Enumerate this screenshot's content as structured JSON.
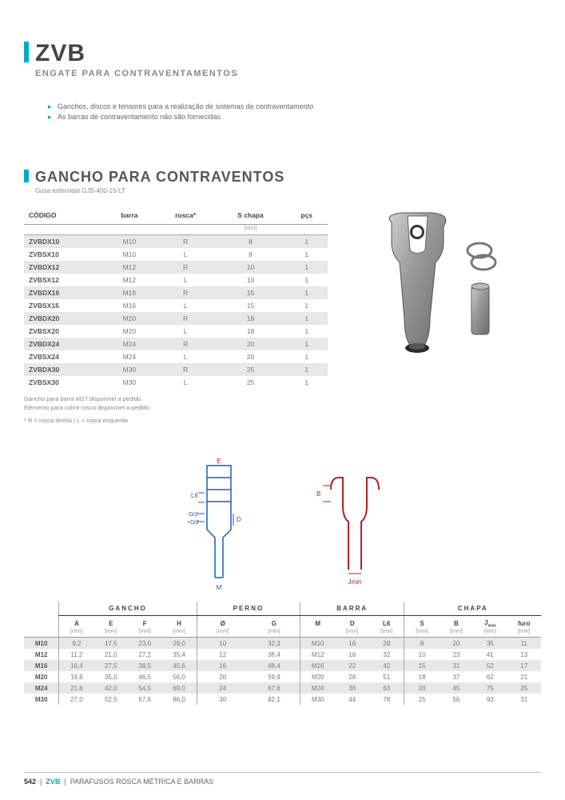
{
  "header": {
    "title": "ZVB",
    "subtitle": "ENGATE PARA CONTRAVENTAMENTOS"
  },
  "bullets": [
    "Ganchos, discos e tensores para a realização de sistemas de contraventamento",
    "As barras de contraventamento não são fornecidas"
  ],
  "section1": {
    "title": "GANCHO PARA CONTRAVENTOS",
    "material": "Gusa esferoidal GJS-400-15-LT",
    "columns": [
      "CÓDIGO",
      "barra",
      "rosca*",
      "S chapa",
      "pçs"
    ],
    "unit_s": "[mm]",
    "rows": [
      [
        "ZVBDX10",
        "M10",
        "R",
        "8",
        "1"
      ],
      [
        "ZVBSX10",
        "M10",
        "L",
        "8",
        "1"
      ],
      [
        "ZVBDX12",
        "M12",
        "R",
        "10",
        "1"
      ],
      [
        "ZVBSX12",
        "M12",
        "L",
        "10",
        "1"
      ],
      [
        "ZVBDX16",
        "M16",
        "R",
        "15",
        "1"
      ],
      [
        "ZVBSX16",
        "M16",
        "L",
        "15",
        "1"
      ],
      [
        "ZVBDX20",
        "M20",
        "R",
        "18",
        "1"
      ],
      [
        "ZVBSX20",
        "M20",
        "L",
        "18",
        "1"
      ],
      [
        "ZVBDX24",
        "M24",
        "R",
        "20",
        "1"
      ],
      [
        "ZVBSX24",
        "M24",
        "L",
        "20",
        "1"
      ],
      [
        "ZVBDX30",
        "M30",
        "R",
        "25",
        "1"
      ],
      [
        "ZVBSX30",
        "M30",
        "L",
        "25",
        "1"
      ]
    ],
    "note1": "Gancho para barra M27 disponível a pedido.",
    "note2": "Elemento para cobrir rosca disponível a pedido.",
    "note3": "* R = rosca direita | L = rosca esquerda"
  },
  "diagram": {
    "labels": {
      "E": "E",
      "L6": "L6",
      "D": "D",
      "M": "M",
      "B": "B",
      "Jmin": "Jmin",
      "d2": "-D/2",
      "d2p": "+D/2"
    },
    "colors": {
      "blue": "#1a5fb4",
      "red": "#b22222"
    }
  },
  "table2": {
    "groups": [
      "GANCHO",
      "PERNO",
      "BARRA",
      "CHAPA"
    ],
    "headers": [
      "",
      "A",
      "E",
      "F",
      "H",
      "Ø",
      "G",
      "M",
      "D",
      "L6",
      "S",
      "B",
      "J",
      "furo"
    ],
    "jmin_sub": "min",
    "unit": "[mm]",
    "rows": [
      [
        "M10",
        "9,2",
        "17,5",
        "23,0",
        "29,0",
        "10",
        "32,3",
        "M10",
        "16",
        "28",
        "8",
        "20",
        "35",
        "11"
      ],
      [
        "M12",
        "11,2",
        "21,0",
        "27,2",
        "35,4",
        "12",
        "38,4",
        "M12",
        "18",
        "32",
        "10",
        "23",
        "41",
        "13"
      ],
      [
        "M16",
        "16,4",
        "27,5",
        "38,5",
        "45,6",
        "16",
        "48,4",
        "M16",
        "22",
        "42",
        "15",
        "31",
        "52",
        "17"
      ],
      [
        "M20",
        "19,6",
        "35,0",
        "46,5",
        "56,0",
        "20",
        "59,9",
        "M20",
        "28",
        "51",
        "18",
        "37",
        "62",
        "21"
      ],
      [
        "M24",
        "21,6",
        "42,0",
        "54,5",
        "69,0",
        "24",
        "67,6",
        "M24",
        "36",
        "63",
        "20",
        "45",
        "75",
        "25"
      ],
      [
        "M30",
        "27,0",
        "52,5",
        "67,6",
        "86,0",
        "30",
        "82,1",
        "M30",
        "44",
        "78",
        "25",
        "56",
        "93",
        "31"
      ]
    ]
  },
  "footer": {
    "page": "542",
    "code": "ZVB",
    "text": "PARAFUSOS ROSCA MÉTRICA E BARRAS"
  }
}
